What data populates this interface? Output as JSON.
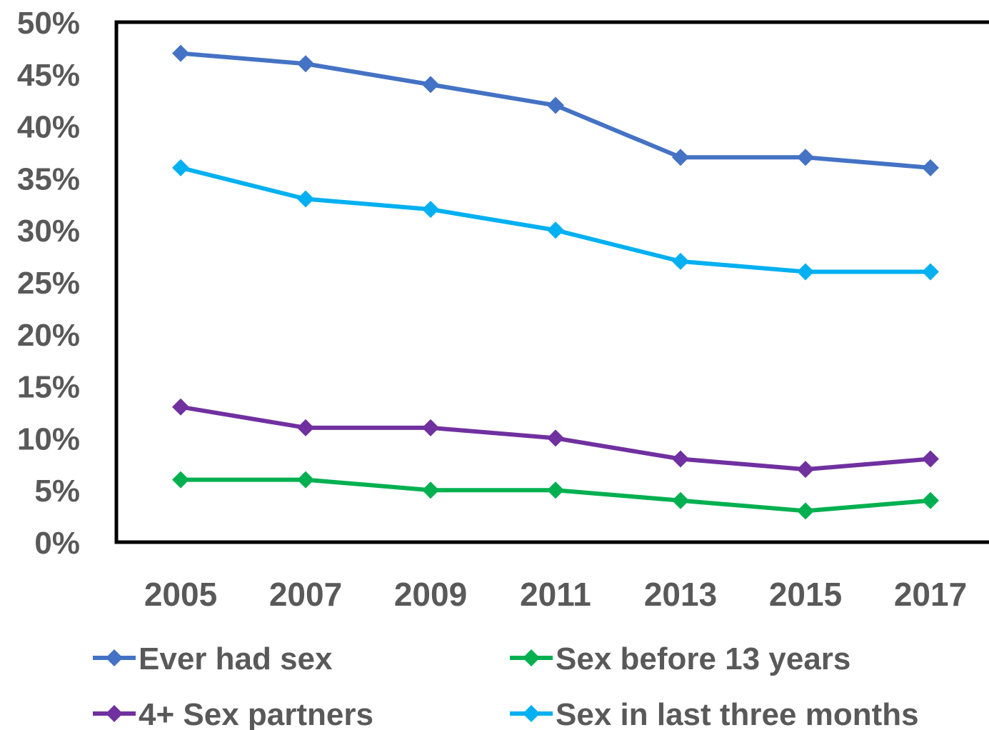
{
  "chart_data": {
    "type": "line",
    "title": "",
    "xlabel": "",
    "ylabel": "",
    "categories": [
      "2005",
      "2007",
      "2009",
      "2011",
      "2013",
      "2015",
      "2017"
    ],
    "ylim": [
      0,
      50
    ],
    "y_ticks": [
      {
        "value": 0,
        "label": "0%"
      },
      {
        "value": 5,
        "label": "5%"
      },
      {
        "value": 10,
        "label": "10%"
      },
      {
        "value": 15,
        "label": "15%"
      },
      {
        "value": 20,
        "label": "20%"
      },
      {
        "value": 25,
        "label": "25%"
      },
      {
        "value": 30,
        "label": "30%"
      },
      {
        "value": 35,
        "label": "35%"
      },
      {
        "value": 40,
        "label": "40%"
      },
      {
        "value": 45,
        "label": "45%"
      },
      {
        "value": 50,
        "label": "50%"
      }
    ],
    "grid": false,
    "legend_position": "bottom",
    "series": [
      {
        "name": "Ever had sex",
        "color": "#4472C4",
        "values": [
          47,
          46,
          44,
          42,
          37,
          37,
          36
        ]
      },
      {
        "name": "Sex before 13 years",
        "color": "#00B050",
        "values": [
          6,
          6,
          5,
          5,
          4,
          3,
          4
        ]
      },
      {
        "name": "4+ Sex partners",
        "color": "#7030A0",
        "values": [
          13,
          11,
          11,
          10,
          8,
          7,
          8
        ]
      },
      {
        "name": "Sex in last three months",
        "color": "#00B0F0",
        "values": [
          36,
          33,
          32,
          30,
          27,
          26,
          26
        ]
      }
    ]
  }
}
